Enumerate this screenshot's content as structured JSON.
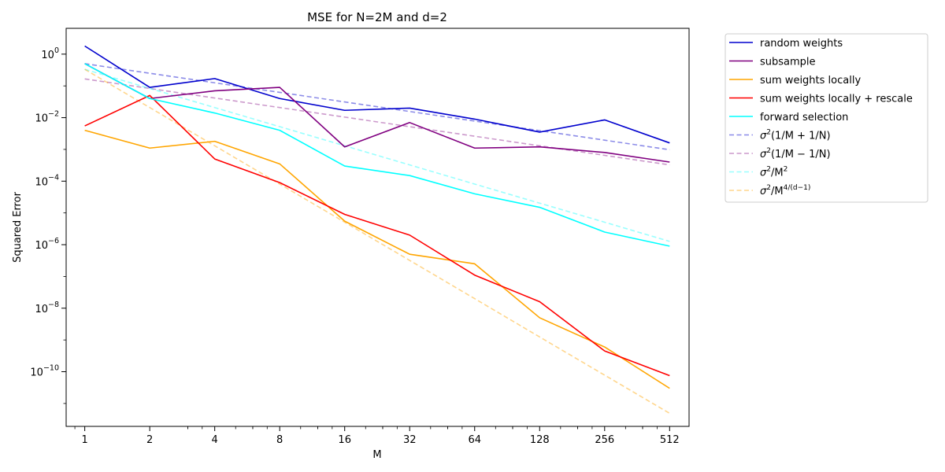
{
  "chart_data": {
    "type": "line",
    "title": "MSE for N=2M and d=2",
    "xlabel": "M",
    "ylabel": "Squared Error",
    "xscale": "log2",
    "yscale": "log10",
    "xlim": [
      0.82,
      630
    ],
    "ylim": [
      1.9e-12,
      6.5
    ],
    "x": [
      1,
      2,
      4,
      8,
      16,
      32,
      64,
      128,
      256,
      512
    ],
    "x_tick_labels": [
      "1",
      "2",
      "4",
      "8",
      "16",
      "32",
      "64",
      "128",
      "256",
      "512"
    ],
    "y_ticks": [
      {
        "value": 1.0,
        "base": "10",
        "exp": "0"
      },
      {
        "value": 0.01,
        "base": "10",
        "exp": "−2"
      },
      {
        "value": 0.0001,
        "base": "10",
        "exp": "−4"
      },
      {
        "value": 1e-06,
        "base": "10",
        "exp": "−6"
      },
      {
        "value": 1e-08,
        "base": "10",
        "exp": "−8"
      },
      {
        "value": 1e-10,
        "base": "10",
        "exp": "−10"
      }
    ],
    "legend_position": "outside-right",
    "series": [
      {
        "name": "random weights",
        "color": "#0000cd",
        "dashed": false,
        "opacity": 1,
        "values": [
          1.8,
          0.09,
          0.17,
          0.04,
          0.017,
          0.02,
          0.009,
          0.0035,
          0.0085,
          0.0016
        ]
      },
      {
        "name": "subsample",
        "color": "#800080",
        "dashed": false,
        "opacity": 1,
        "values": [
          0.5,
          0.04,
          0.07,
          0.09,
          0.0012,
          0.007,
          0.0011,
          0.0012,
          0.0008,
          0.0004
        ]
      },
      {
        "name": "sum weights locally",
        "color": "#ffa500",
        "dashed": false,
        "opacity": 1,
        "values": [
          0.004,
          0.0011,
          0.0018,
          0.00035,
          5.5e-06,
          5e-07,
          2.5e-07,
          5e-09,
          6e-10,
          3e-11
        ]
      },
      {
        "name": "sum weights locally + rescale",
        "color": "#ff0000",
        "dashed": false,
        "opacity": 1,
        "values": [
          0.0055,
          0.05,
          0.0005,
          9e-05,
          9e-06,
          2e-06,
          1.1e-07,
          1.6e-08,
          4.5e-10,
          7.5e-11
        ]
      },
      {
        "name": "forward selection",
        "color": "#00ffff",
        "dashed": false,
        "opacity": 1,
        "values": [
          0.5,
          0.04,
          0.014,
          0.004,
          0.0003,
          0.00015,
          4e-05,
          1.5e-05,
          2.5e-06,
          9e-07
        ]
      },
      {
        "name": "σ²(1/M + 1/N)",
        "legend": {
          "base": "σ",
          "sup": "2",
          "rest": "(1/M + 1/N)"
        },
        "color": "#0000cd",
        "dashed": true,
        "opacity": 0.45,
        "values": [
          0.5,
          0.25,
          0.125,
          0.0625,
          0.03125,
          0.015625,
          0.0078125,
          0.00390625,
          0.001953125,
          0.0009765625
        ]
      },
      {
        "name": "σ²(1/M − 1/N)",
        "legend": {
          "base": "σ",
          "sup": "2",
          "rest": "(1/M − 1/N)"
        },
        "color": "#800080",
        "dashed": true,
        "opacity": 0.4,
        "values": [
          0.166,
          0.083,
          0.0415,
          0.0208,
          0.0104,
          0.0052,
          0.0026,
          0.0013,
          0.00065,
          0.000325
        ]
      },
      {
        "name": "σ²/M²",
        "legend": {
          "base": "σ",
          "sup": "2",
          "rest": "/M",
          "sup2": "2"
        },
        "color": "#00ffff",
        "dashed": true,
        "opacity": 0.4,
        "values": [
          0.333,
          0.0833,
          0.0208,
          0.0052,
          0.0013,
          0.000325,
          8.1e-05,
          2.03e-05,
          5.1e-06,
          1.27e-06
        ]
      },
      {
        "name": "σ²/M^{4/(d−1)}",
        "legend": {
          "base": "σ",
          "sup": "2",
          "rest": "/M",
          "sup2": "4/(d−1)"
        },
        "color": "#ffa500",
        "dashed": true,
        "opacity": 0.45,
        "values": [
          0.333,
          0.0208,
          0.0013,
          8.1e-05,
          5.1e-06,
          3.2e-07,
          2e-08,
          1.24e-09,
          7.8e-11,
          4.9e-12
        ]
      }
    ]
  }
}
